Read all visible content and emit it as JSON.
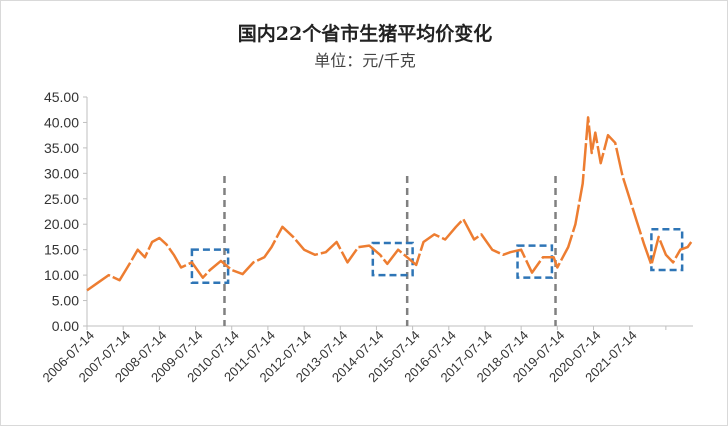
{
  "chart_data": {
    "type": "line",
    "title": "国内22个省市生猪平均价变化",
    "subtitle": "单位：元/千克",
    "xlabel": "",
    "ylabel": "",
    "ylim": [
      0,
      45
    ],
    "yticks": [
      "0.00",
      "5.00",
      "10.00",
      "15.00",
      "20.00",
      "25.00",
      "30.00",
      "35.00",
      "40.00",
      "45.00"
    ],
    "categories": [
      "2006-07-14",
      "2007-07-14",
      "2008-07-14",
      "2009-07-14",
      "2010-07-14",
      "2011-07-14",
      "2012-07-14",
      "2013-07-14",
      "2014-07-14",
      "2015-07-14",
      "2016-07-14",
      "2017-07-14",
      "2018-07-14",
      "2019-07-14",
      "2020-07-14",
      "2021-07-14"
    ],
    "grid": false,
    "legend": "none",
    "series": [
      {
        "color": "#ED7D31",
        "x": [
          2006.0,
          2006.3,
          2006.6,
          2006.9,
          2007.2,
          2007.4,
          2007.6,
          2007.8,
          2008.0,
          2008.2,
          2008.4,
          2008.6,
          2008.9,
          2009.2,
          2009.4,
          2009.7,
          2010.0,
          2010.3,
          2010.6,
          2010.9,
          2011.1,
          2011.4,
          2011.7,
          2012.0,
          2012.3,
          2012.6,
          2012.9,
          2013.2,
          2013.5,
          2013.8,
          2014.1,
          2014.3,
          2014.6,
          2014.9,
          2015.1,
          2015.3,
          2015.6,
          2015.9,
          2016.2,
          2016.4,
          2016.7,
          2016.9,
          2017.2,
          2017.5,
          2017.7,
          2018.0,
          2018.3,
          2018.6,
          2018.9,
          2019.0,
          2019.3,
          2019.5,
          2019.7,
          2019.85,
          2019.95,
          2020.05,
          2020.2,
          2020.4,
          2020.6,
          2020.8,
          2021.0,
          2021.2,
          2021.4,
          2021.6,
          2021.8,
          2022.0,
          2022.2,
          2022.4,
          2022.6,
          2022.7
        ],
        "values": [
          7.0,
          8.5,
          10.0,
          9.0,
          12.5,
          15.0,
          13.5,
          16.5,
          17.3,
          16.0,
          14.0,
          11.5,
          12.5,
          9.5,
          11.0,
          12.8,
          11.0,
          10.2,
          12.5,
          13.5,
          15.5,
          19.5,
          17.5,
          15.0,
          14.0,
          14.5,
          16.5,
          12.5,
          15.5,
          15.8,
          14.0,
          12.2,
          15.0,
          13.2,
          12.0,
          16.5,
          18.0,
          17.0,
          19.5,
          21.0,
          17.0,
          18.0,
          15.0,
          14.0,
          14.5,
          15.0,
          10.5,
          13.5,
          13.5,
          11.5,
          15.5,
          20.0,
          28.0,
          41.0,
          34.0,
          38.0,
          32.0,
          37.5,
          36.0,
          29.5,
          25.0,
          20.5,
          16.0,
          12.0,
          17.5,
          14.0,
          12.5,
          15.0,
          15.5,
          16.5
        ]
      }
    ],
    "vlines_x": [
      2009.8,
      2014.85,
      2018.95
    ],
    "boxes": [
      {
        "x0": 2008.9,
        "x1": 2009.9,
        "y0": 8.5,
        "y1": 15.0
      },
      {
        "x0": 2013.9,
        "x1": 2015.0,
        "y0": 10.0,
        "y1": 16.3
      },
      {
        "x0": 2017.9,
        "x1": 2018.85,
        "y0": 9.5,
        "y1": 15.8
      },
      {
        "x0": 2021.6,
        "x1": 2022.45,
        "y0": 11.0,
        "y1": 19.0
      }
    ],
    "colors": {
      "line": "#ED7D31",
      "vline": "#808080",
      "box": "#2E75B6",
      "axis": "#bfbfbf"
    }
  }
}
